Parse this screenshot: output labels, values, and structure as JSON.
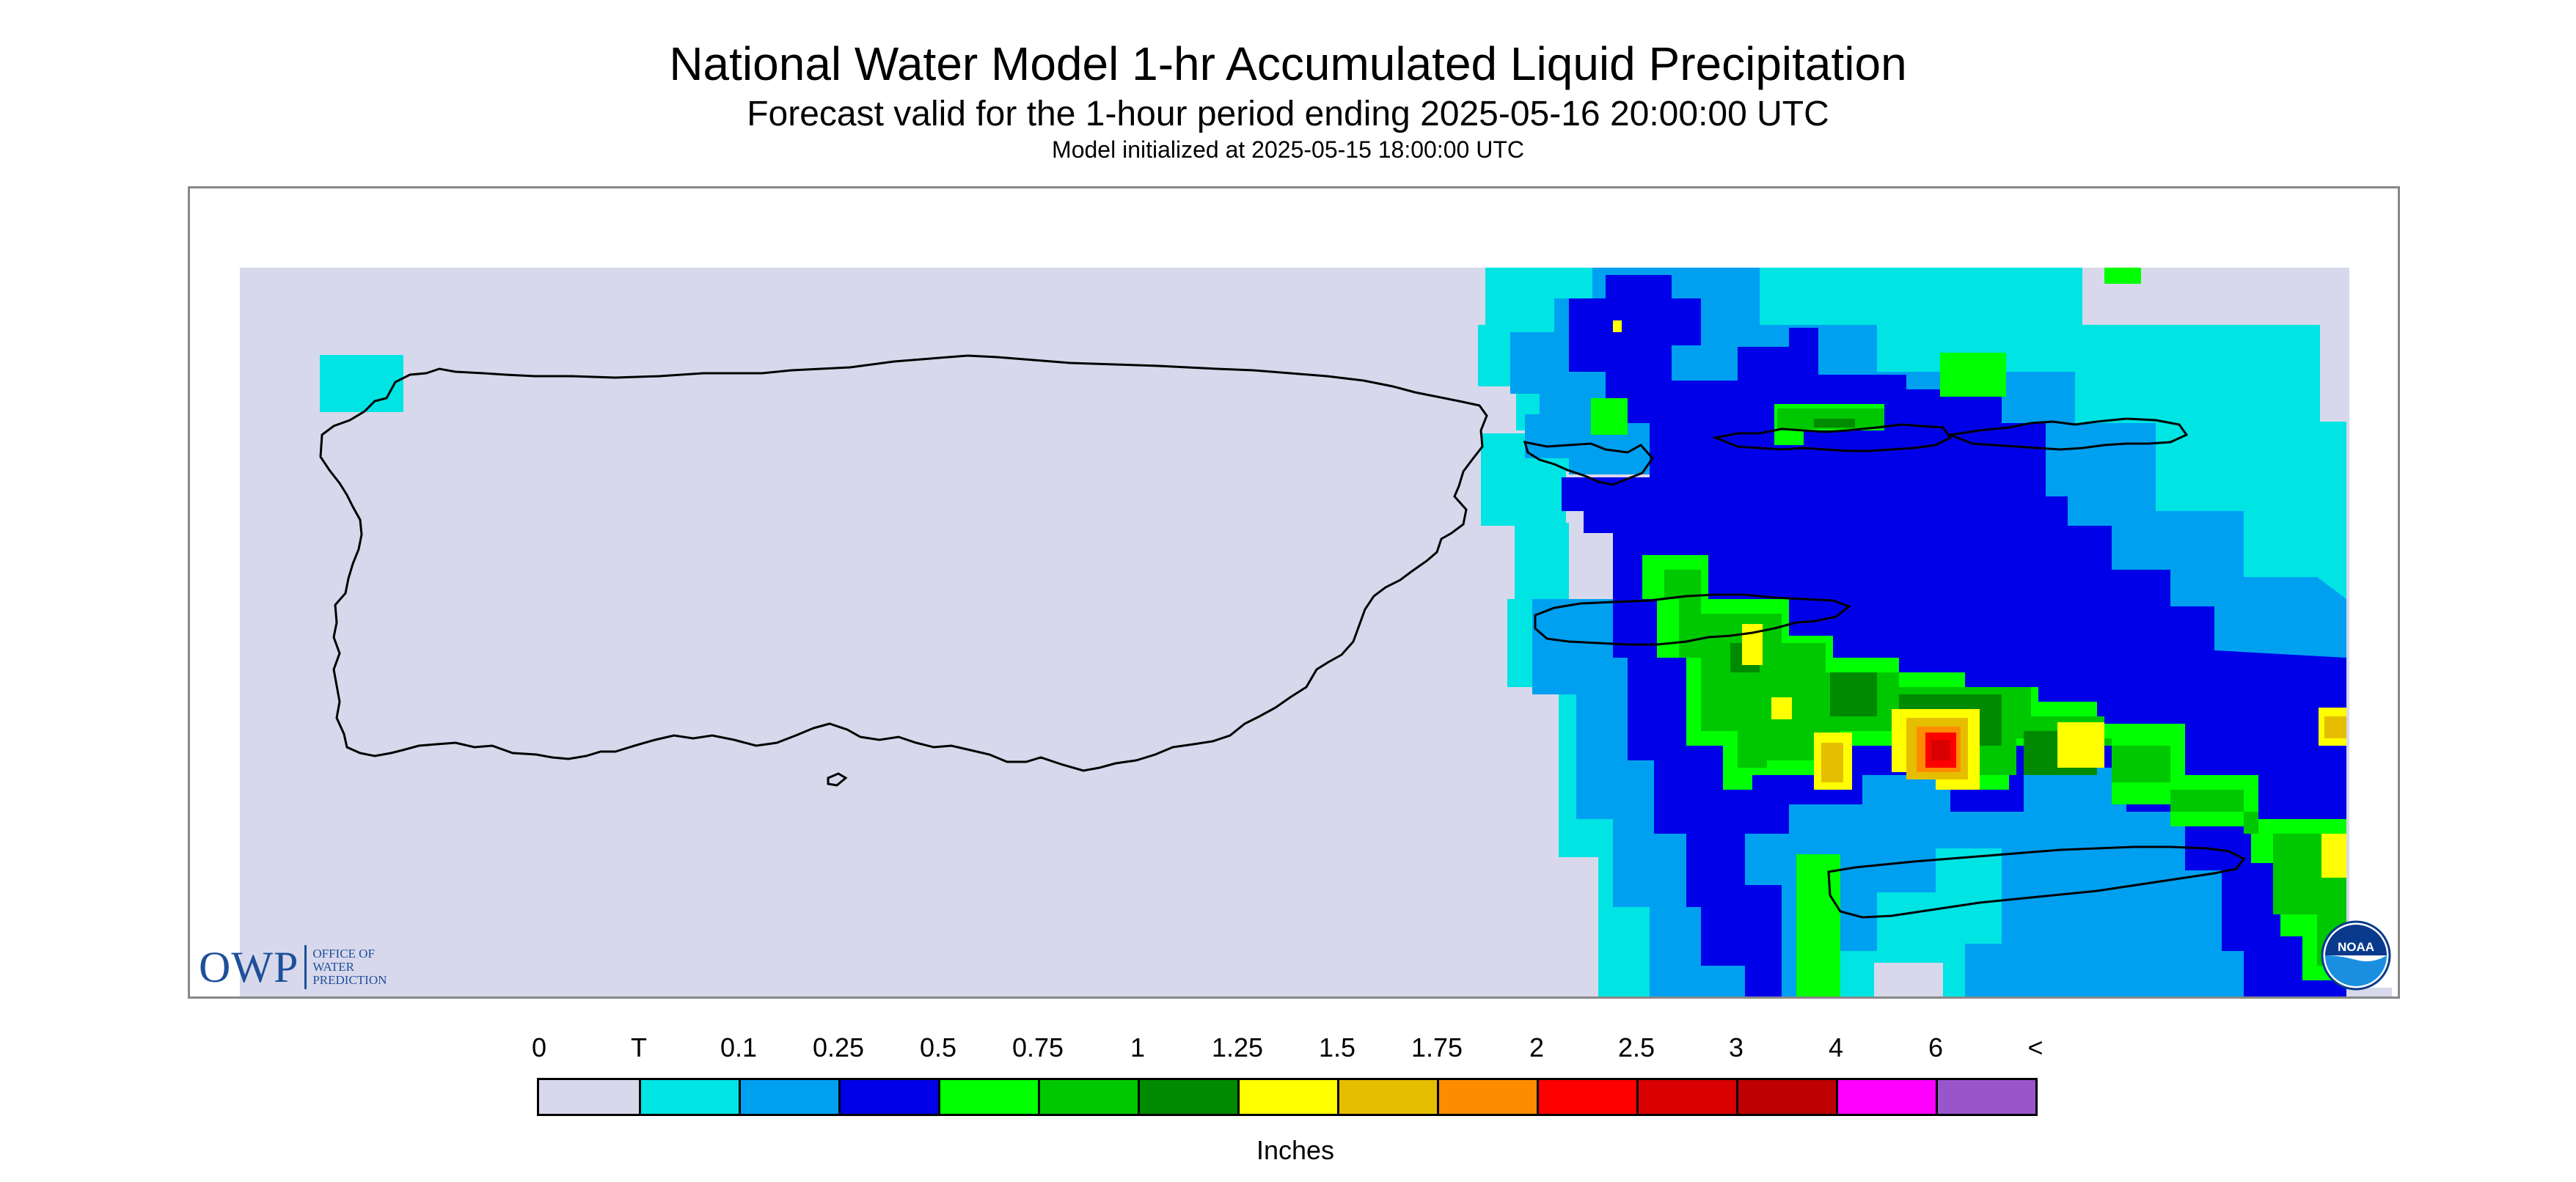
{
  "header": {
    "title": "National Water Model 1-hr Accumulated Liquid Precipitation",
    "subtitle": "Forecast valid for the 1-hour period ending 2025-05-16 20:00:00 UTC",
    "init": "Model initialized at 2025-05-15 18:00:00 UTC"
  },
  "logos": {
    "owp_mark": "OWP",
    "owp_lines": [
      "OFFICE OF",
      "WATER",
      "PREDICTION"
    ],
    "noaa": "NOAA"
  },
  "legend": {
    "ticks": [
      "0",
      "T",
      "0.1",
      "0.25",
      "0.5",
      "0.75",
      "1",
      "1.25",
      "1.5",
      "1.75",
      "2",
      "2.5",
      "3",
      "4",
      "6",
      "<"
    ],
    "colors": [
      "#d8d8ec",
      "#00e4e4",
      "#00a0f0",
      "#0000e8",
      "#00ff00",
      "#00c800",
      "#008a00",
      "#ffff00",
      "#e6be00",
      "#ff8c00",
      "#ff0000",
      "#d80000",
      "#be0000",
      "#ff00ff",
      "#9955cc"
    ],
    "units": "Inches"
  },
  "map": {
    "background_color": "#d8d8ec",
    "coastline_color": "#000000",
    "features": [
      "Puerto Rico",
      "Vieques",
      "Culebra",
      "U.S. Virgin Islands",
      "British Virgin Islands"
    ],
    "heaviest_precip": "approximately 2 inches, east of the Virgin Islands"
  }
}
